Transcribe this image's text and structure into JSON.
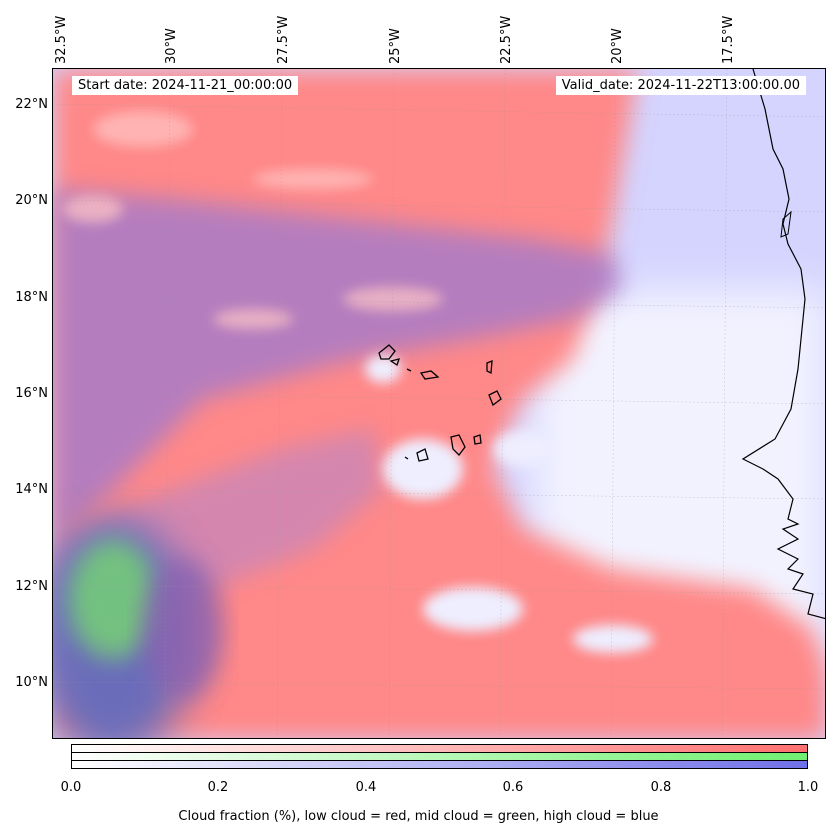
{
  "header": {
    "start_date": "Start date: 2024-11-21_00:00:00",
    "valid_date": "Valid_date: 2024-11-22T13:00:00.00"
  },
  "axes": {
    "longitude_labels": [
      "32.5°W",
      "30°W",
      "27.5°W",
      "25°W",
      "22.5°W",
      "20°W",
      "17.5°W"
    ],
    "latitude_labels": [
      "22°N",
      "20°N",
      "18°N",
      "16°N",
      "14°N",
      "12°N",
      "10°N"
    ]
  },
  "colorbar": {
    "ticks": [
      "0.0",
      "0.2",
      "0.4",
      "0.6",
      "0.8",
      "1.0"
    ],
    "label": "Cloud fraction (%), low cloud = red, mid cloud = green, high cloud = blue",
    "colors": {
      "low": "#ff7070",
      "mid": "#70f070",
      "high": "#7070e8"
    }
  },
  "map": {
    "colors": {
      "ocean_clear": "#f4f4ff",
      "low_cloud": "#ff8a8a",
      "mixed_cloud": "#b07ac8",
      "high_cloud": "#c8c8ff",
      "mid_cloud": "#7ed87e",
      "coastline": "#000000"
    }
  }
}
